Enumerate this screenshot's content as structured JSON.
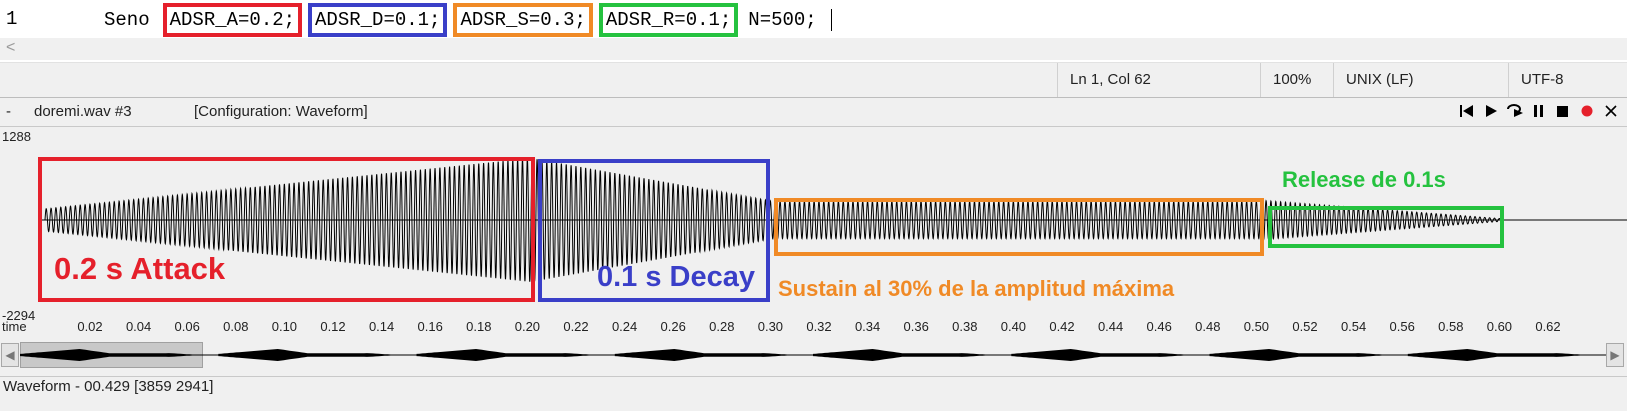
{
  "editor": {
    "line_number": "1",
    "tokens": [
      "Seno",
      "ADSR_A=0.2;",
      "ADSR_D=0.1;",
      "ADSR_S=0.3;",
      "ADSR_R=0.1;",
      "N=500;"
    ]
  },
  "statusbar": {
    "position": "Ln 1, Col 62",
    "zoom": "100%",
    "line_endings": "UNIX (LF)",
    "encoding": "UTF-8"
  },
  "panel": {
    "dash": "-",
    "filename": "doremi.wav #3",
    "configuration": "[Configuration: Waveform]",
    "transport_icons": [
      "skip-back-icon",
      "play-icon",
      "loop-play-icon",
      "pause-icon",
      "stop-icon",
      "record-icon",
      "close-icon"
    ]
  },
  "plot": {
    "ymax": "1288",
    "ymin": "-2294",
    "time_label": "time",
    "ticks": [
      "0.02",
      "0.04",
      "0.06",
      "0.08",
      "0.10",
      "0.12",
      "0.14",
      "0.16",
      "0.18",
      "0.20",
      "0.22",
      "0.24",
      "0.26",
      "0.28",
      "0.30",
      "0.32",
      "0.34",
      "0.36",
      "0.38",
      "0.40",
      "0.42",
      "0.44",
      "0.46",
      "0.48",
      "0.50",
      "0.52",
      "0.54",
      "0.56",
      "0.58",
      "0.60",
      "0.62"
    ]
  },
  "annotations": {
    "attack": "0.2 s Attack",
    "decay": "0.1 s Decay",
    "sustain": "Sustain al 30% de la amplitud máxima",
    "release": "Release de 0.1s"
  },
  "colors": {
    "attack": "#e5202b",
    "decay": "#3a3fc8",
    "sustain": "#f08a26",
    "release": "#25c23f"
  },
  "footer": {
    "status": "Waveform - 00.429 [3859 2941]"
  }
}
